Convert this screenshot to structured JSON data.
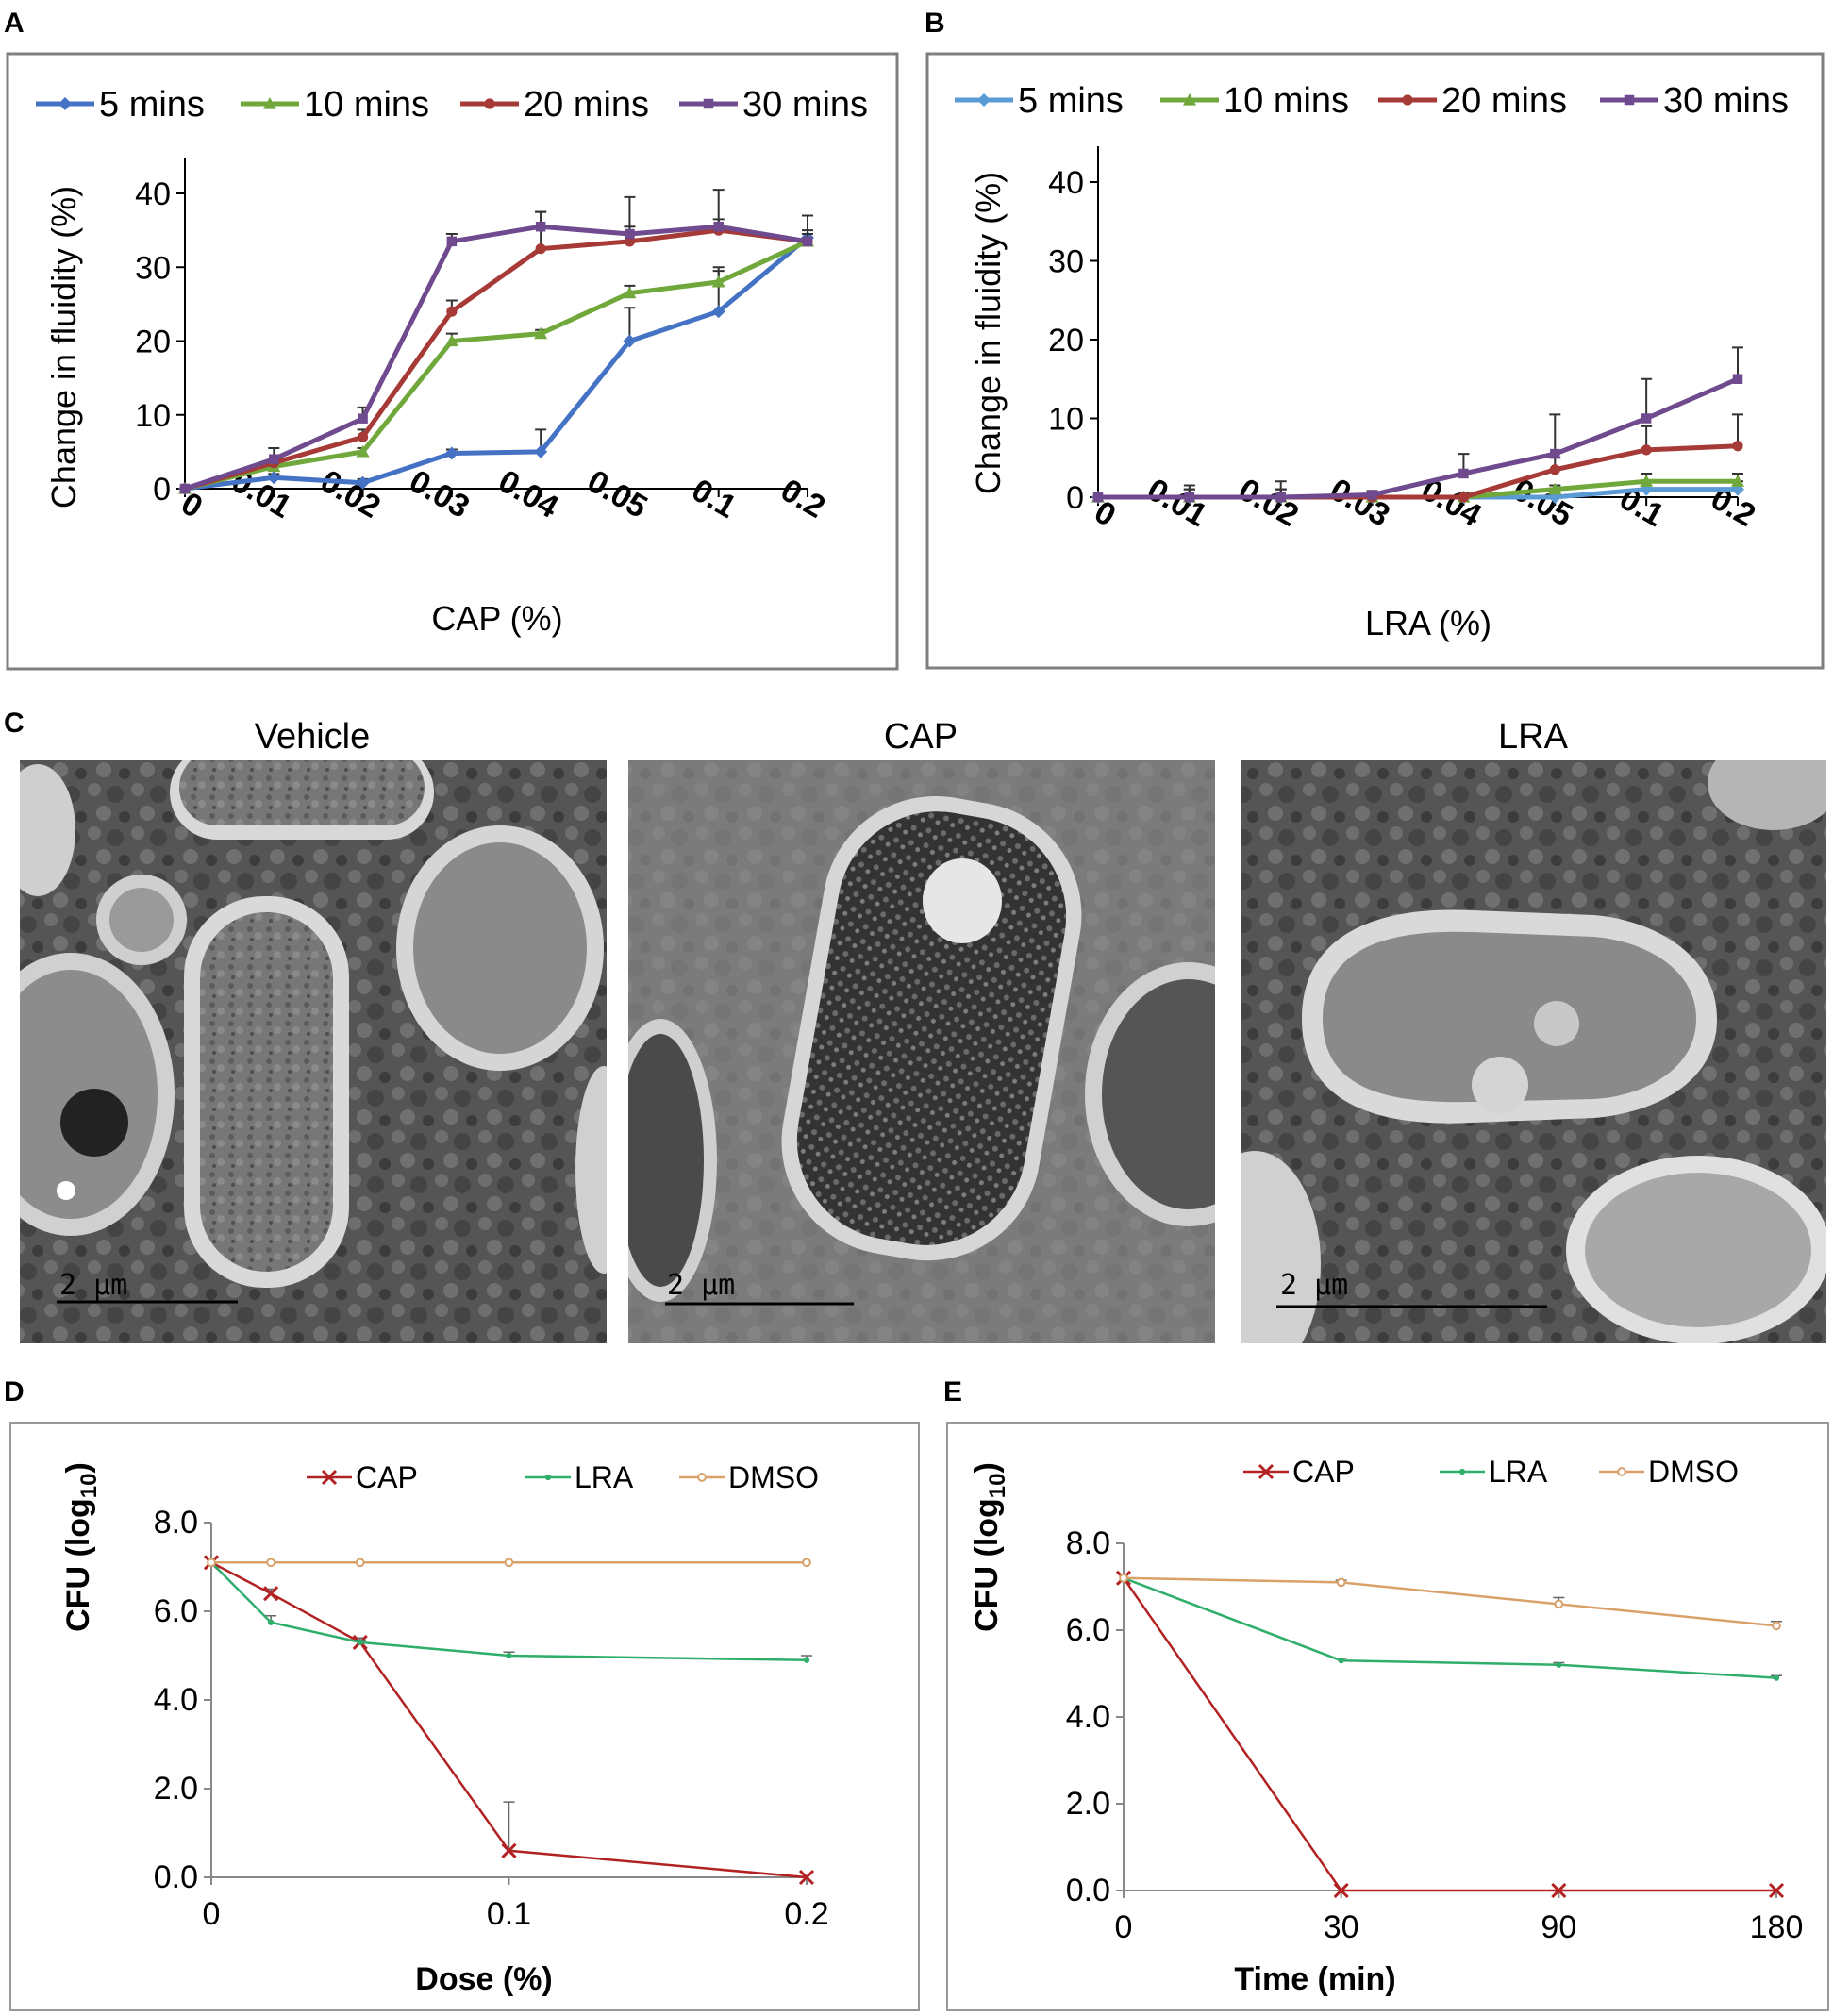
{
  "figure": {
    "panel_labels": [
      "A",
      "B",
      "C",
      "D",
      "E"
    ],
    "em_titles": [
      "Vehicle",
      "CAP",
      "LRA"
    ],
    "scale_bar_label": "2 μm",
    "colors": {
      "s5": "#4472C4",
      "s5b": "#5B9BD5",
      "s10": "#70A83C",
      "s20": "#A63A36",
      "s30": "#6F4A8E",
      "cap": "#B22222",
      "lra": "#2EAE6A",
      "dmso": "#D9A06A"
    }
  },
  "chart_data": [
    {
      "id": "A",
      "type": "line",
      "categories": [
        "0",
        "0.01",
        "0.02",
        "0.03",
        "0.04",
        "0.05",
        "0.1",
        "0.2"
      ],
      "xlabel": "CAP (%)",
      "ylabel": "Change in fluidity (%)",
      "ylim": [
        0,
        40
      ],
      "yticks": [
        0,
        10,
        20,
        30,
        40
      ],
      "legend_position": "top",
      "series": [
        {
          "name": "5 mins",
          "color": "#4472C4",
          "marker": "diamond",
          "values": [
            0,
            1.5,
            0.8,
            4.8,
            5,
            20,
            24,
            34
          ],
          "errors": [
            0,
            0.5,
            0.5,
            0.5,
            3,
            4.5,
            6,
            3
          ]
        },
        {
          "name": "10 mins",
          "color": "#70A83C",
          "marker": "triangle",
          "values": [
            0,
            3,
            5,
            20,
            21,
            26.5,
            28,
            33.5
          ],
          "errors": [
            0,
            0.5,
            0.5,
            1,
            0.5,
            1,
            1.5,
            1
          ]
        },
        {
          "name": "20 mins",
          "color": "#A63A36",
          "marker": "circle",
          "values": [
            0,
            3.5,
            7,
            24,
            32.5,
            33.5,
            35,
            33.5
          ],
          "errors": [
            0,
            0.5,
            1,
            1.5,
            5,
            2,
            1.5,
            1.5
          ]
        },
        {
          "name": "30 mins",
          "color": "#6F4A8E",
          "marker": "square",
          "values": [
            0,
            4,
            9.5,
            33.5,
            35.5,
            34.5,
            35.5,
            33.5
          ],
          "errors": [
            0,
            1.5,
            1.5,
            1,
            2,
            5,
            5,
            1
          ]
        }
      ]
    },
    {
      "id": "B",
      "type": "line",
      "categories": [
        "0",
        "0.01",
        "0.02",
        "0.03",
        "0.04",
        "0.05",
        "0.1",
        "0.2"
      ],
      "xlabel": "LRA (%)",
      "ylabel": "Change in fluidity (%)",
      "ylim": [
        0,
        40
      ],
      "yticks": [
        0,
        10,
        20,
        30,
        40
      ],
      "legend_position": "top",
      "series": [
        {
          "name": "5 mins",
          "color": "#5B9BD5",
          "marker": "diamond",
          "values": [
            0,
            0,
            0,
            0,
            0,
            0,
            1,
            1
          ],
          "errors": [
            0,
            1,
            1,
            0.5,
            0.5,
            0.5,
            1,
            1
          ]
        },
        {
          "name": "10 mins",
          "color": "#70A83C",
          "marker": "triangle",
          "values": [
            0,
            0,
            0,
            0,
            0,
            1,
            2,
            2
          ],
          "errors": [
            0,
            1,
            1,
            0.5,
            0.5,
            0.5,
            1,
            1
          ]
        },
        {
          "name": "20 mins",
          "color": "#A63A36",
          "marker": "circle",
          "values": [
            0,
            0,
            0,
            0,
            0,
            3.5,
            6,
            6.5
          ],
          "errors": [
            0,
            1,
            1,
            0.5,
            0.5,
            1.5,
            3,
            4
          ]
        },
        {
          "name": "30 mins",
          "color": "#6F4A8E",
          "marker": "square",
          "values": [
            0,
            0,
            0,
            0.3,
            3,
            5.5,
            10,
            15
          ],
          "errors": [
            0,
            1.5,
            2,
            0.5,
            2.5,
            5,
            5,
            4
          ]
        }
      ]
    },
    {
      "id": "D",
      "type": "line",
      "x": [
        0,
        0.02,
        0.05,
        0.1,
        0.2
      ],
      "xticks": [
        "0",
        "0.1",
        "0.2"
      ],
      "xlim": [
        0,
        0.2
      ],
      "xlabel": "Dose (%)",
      "ylabel_main": "CFU (log",
      "ylabel_sub": "10",
      "ylabel_end": ")",
      "ylim": [
        0,
        8
      ],
      "yticks": [
        "0.0",
        "2.0",
        "4.0",
        "6.0",
        "8.0"
      ],
      "legend_position": "top",
      "series": [
        {
          "name": "CAP",
          "color": "#B22222",
          "marker": "x",
          "values": [
            7.1,
            6.4,
            5.3,
            0.6,
            0
          ],
          "errors": [
            0,
            0.1,
            0.1,
            1.1,
            0
          ]
        },
        {
          "name": "LRA",
          "color": "#2EAE6A",
          "marker": "dot",
          "values": [
            7.1,
            5.75,
            5.3,
            5.0,
            4.9
          ],
          "errors": [
            0,
            0.15,
            0.05,
            0.08,
            0.1
          ]
        },
        {
          "name": "DMSO",
          "color": "#D9A06A",
          "marker": "ring",
          "values": [
            7.1,
            7.1,
            7.1,
            7.1,
            7.1
          ],
          "errors": [
            0,
            0,
            0,
            0,
            0
          ]
        }
      ]
    },
    {
      "id": "E",
      "type": "line",
      "categories": [
        "0",
        "30",
        "90",
        "180"
      ],
      "xlabel": "Time (min)",
      "ylabel_main": "CFU (log",
      "ylabel_sub": "10",
      "ylabel_end": ")",
      "ylim": [
        0,
        8
      ],
      "yticks": [
        "0.0",
        "2.0",
        "4.0",
        "6.0",
        "8.0"
      ],
      "legend_position": "top",
      "series": [
        {
          "name": "CAP",
          "color": "#B22222",
          "marker": "x",
          "values": [
            7.2,
            0,
            0,
            0
          ],
          "errors": [
            0,
            0,
            0,
            0
          ]
        },
        {
          "name": "LRA",
          "color": "#2EAE6A",
          "marker": "dot",
          "values": [
            7.2,
            5.3,
            5.2,
            4.9
          ],
          "errors": [
            0,
            0.05,
            0.05,
            0.05
          ]
        },
        {
          "name": "DMSO",
          "color": "#D9A06A",
          "marker": "ring",
          "values": [
            7.2,
            7.1,
            6.6,
            6.1
          ],
          "errors": [
            0,
            0.05,
            0.15,
            0.1
          ]
        }
      ]
    }
  ]
}
